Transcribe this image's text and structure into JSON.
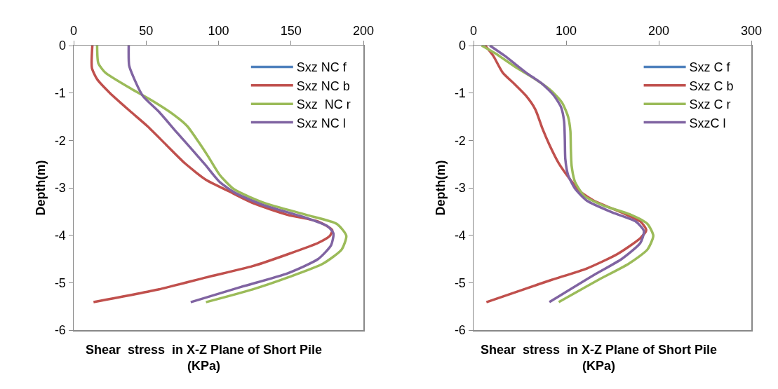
{
  "chart_data": [
    {
      "type": "line",
      "xlabel": "Shear  stress  in X-Z Plane of Short Pile\n(KPa)",
      "ylabel": "Depth(m)",
      "xlim": [
        0,
        200
      ],
      "xticks": [
        0,
        50,
        100,
        150,
        200
      ],
      "ylim": [
        -6,
        0
      ],
      "yticks": [
        -6,
        -5,
        -4,
        -3,
        -2,
        -1,
        0
      ],
      "grid": false,
      "legend": "top right",
      "marker": "none",
      "line_style": "solid",
      "series": [
        {
          "name": "Sxz NC f",
          "color": "#4f81bd"
        },
        {
          "name": "Sxz NC b",
          "color": "#c0504d",
          "x": [
            12.9,
            12.6,
            16.2,
            25,
            39.6,
            50.9,
            63.8,
            76.7,
            91.3,
            107,
            123.6,
            147.8,
            168.8,
            178.5,
            176.9,
            168.8,
            147.8,
            123.6,
            91.3,
            59,
            13.7
          ],
          "values": [
            0,
            -0.47,
            -0.71,
            -1.0,
            -1.4,
            -1.7,
            -2.09,
            -2.48,
            -2.83,
            -3.07,
            -3.32,
            -3.57,
            -3.71,
            -3.89,
            -4.01,
            -4.16,
            -4.4,
            -4.65,
            -4.89,
            -5.14,
            -5.41
          ]
        },
        {
          "name": "Sxz  NC r",
          "color": "#9bbb59",
          "x": [
            16.2,
            17,
            21.8,
            39.6,
            54.1,
            68.7,
            78.4,
            86.4,
            92.9,
            100.9,
            110.7,
            131.7,
            160.7,
            181.7,
            188.2,
            185,
            172,
            147.8,
            123.6,
            91.3
          ],
          "values": [
            0,
            -0.37,
            -0.57,
            -0.91,
            -1.16,
            -1.45,
            -1.7,
            -2.04,
            -2.34,
            -2.73,
            -3.03,
            -3.32,
            -3.57,
            -3.76,
            -4.01,
            -4.3,
            -4.6,
            -4.89,
            -5.14,
            -5.41
          ]
        },
        {
          "name": "Sxz NC l",
          "color": "#8064a2",
          "x": [
            38,
            38.3,
            41.2,
            47.7,
            59,
            70.3,
            81.6,
            91.3,
            100.9,
            112.3,
            131.7,
            159.2,
            175.3,
            179.3,
            177.7,
            168.8,
            147.8,
            115.5,
            80.8
          ],
          "values": [
            0,
            -0.42,
            -0.66,
            -1.06,
            -1.4,
            -1.8,
            -2.19,
            -2.53,
            -2.88,
            -3.12,
            -3.37,
            -3.62,
            -3.81,
            -3.96,
            -4.21,
            -4.5,
            -4.8,
            -5.09,
            -5.41
          ]
        }
      ]
    },
    {
      "type": "line",
      "xlabel": "Shear  stress  in X-Z Plane of Short Pile\n(KPa)",
      "ylabel": "Depth(m)",
      "xlim": [
        0,
        300
      ],
      "xticks": [
        0,
        100,
        200,
        300
      ],
      "ylim": [
        -6,
        0
      ],
      "yticks": [
        -6,
        -5,
        -4,
        -3,
        -2,
        -1,
        0
      ],
      "grid": false,
      "legend": "top right",
      "marker": "none",
      "line_style": "solid",
      "series": [
        {
          "name": "Sxz C f",
          "color": "#4f81bd"
        },
        {
          "name": "Sxz C b",
          "color": "#c0504d",
          "x": [
            12.6,
            21.4,
            31.5,
            44.1,
            56.7,
            66.8,
            74.4,
            81.9,
            92,
            104.6,
            114.7,
            129.8,
            160,
            180.2,
            186.5,
            180.2,
            155,
            122.3,
            84.4,
            54.2,
            13.9
          ],
          "values": [
            0,
            -0.22,
            -0.57,
            -0.81,
            -1.06,
            -1.35,
            -1.75,
            -2.09,
            -2.48,
            -2.83,
            -3.07,
            -3.27,
            -3.52,
            -3.71,
            -3.89,
            -4.06,
            -4.4,
            -4.7,
            -4.94,
            -5.14,
            -5.41
          ]
        },
        {
          "name": "Sxz C r",
          "color": "#9bbb59",
          "x": [
            8.8,
            23.9,
            46.6,
            66.8,
            84.4,
            95.8,
            102.1,
            104.6,
            105.1,
            105.9,
            109.7,
            119.7,
            139.9,
            170.2,
            187.8,
            194.1,
            187.8,
            167.6,
            134.9,
            92
          ],
          "values": [
            0,
            -0.17,
            -0.47,
            -0.71,
            -0.96,
            -1.21,
            -1.5,
            -1.8,
            -2.19,
            -2.53,
            -2.88,
            -3.17,
            -3.37,
            -3.57,
            -3.76,
            -4.01,
            -4.3,
            -4.6,
            -4.94,
            -5.41
          ]
        },
        {
          "name": "SxzC l",
          "color": "#8064a2",
          "x": [
            17.6,
            34,
            56.7,
            74.4,
            87,
            94.5,
            97.8,
            98.6,
            99.1,
            102.1,
            109.7,
            122.3,
            150,
            175.2,
            184,
            180.2,
            160,
            129.8,
            81.9
          ],
          "values": [
            0,
            -0.22,
            -0.57,
            -0.81,
            -1.06,
            -1.3,
            -1.6,
            -1.99,
            -2.39,
            -2.73,
            -3.02,
            -3.27,
            -3.52,
            -3.71,
            -3.91,
            -4.16,
            -4.5,
            -4.84,
            -5.41
          ]
        }
      ]
    }
  ]
}
